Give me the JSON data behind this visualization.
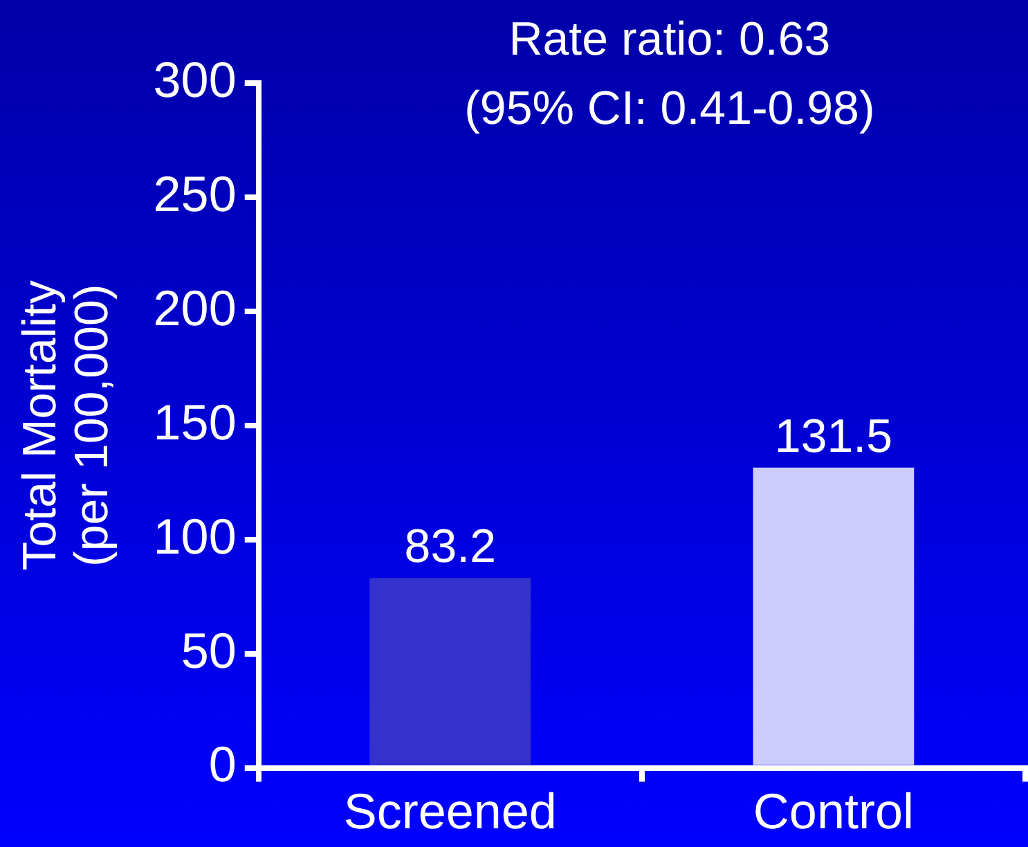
{
  "chart_data": {
    "type": "bar",
    "ylabel": "Total Mortality\n(per 100,000)",
    "categories": [
      "Screened",
      "Control"
    ],
    "values": [
      83.2,
      131.5
    ],
    "colors": [
      "#3333cc",
      "#ccccff"
    ],
    "ylim": [
      0,
      300
    ],
    "yticks": [
      0,
      50,
      100,
      150,
      200,
      250,
      300
    ],
    "grid": false,
    "legend": false,
    "data_labels": true,
    "annotations": [
      "Rate ratio: 0.63",
      "(95% CI: 0.41-0.98)"
    ]
  }
}
